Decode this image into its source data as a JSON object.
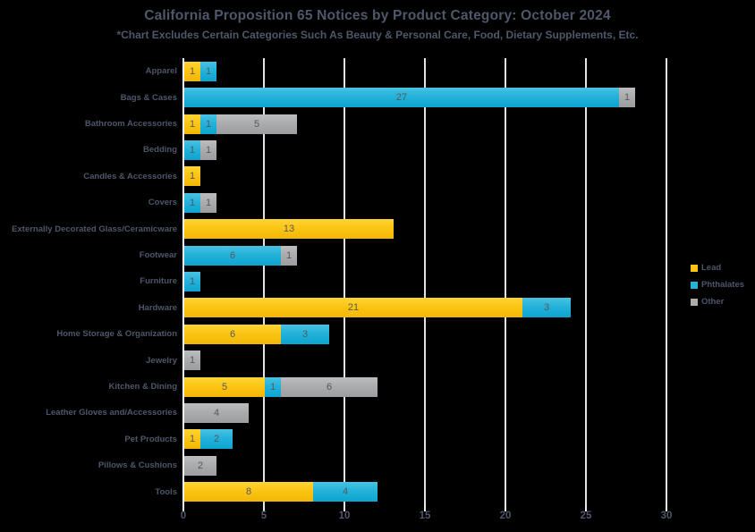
{
  "title": "California Proposition 65 Notices by Product Category: October 2024",
  "subtitle": "*Chart Excludes Certain Categories Such As Beauty & Personal Care, Food, Dietary Supplements, Etc.",
  "colors": {
    "lead": "#FCC513",
    "phthalates": "#24B2DA",
    "other": "#ABACAE",
    "text": "#4D5769",
    "gridline": "#E2E3E6",
    "background": "#000000"
  },
  "legend": [
    {
      "id": "lead",
      "label": "Lead",
      "color": "#FCC513"
    },
    {
      "id": "phthalates",
      "label": "Phthalates",
      "color": "#24B2DA"
    },
    {
      "id": "other",
      "label": "Other",
      "color": "#ABACAE"
    }
  ],
  "x_axis": {
    "ticks": [
      "0",
      "5",
      "10",
      "15",
      "20",
      "25",
      "30"
    ],
    "min": 0,
    "max": 30,
    "grid": true
  },
  "chart_data": {
    "type": "bar",
    "orientation": "horizontal",
    "stacked": true,
    "title": "California Proposition 65 Notices by Product Category: October 2024",
    "subtitle": "*Chart Excludes Certain Categories Such As Beauty & Personal Care, Food, Dietary Supplements, Etc.",
    "xlabel": "",
    "ylabel": "",
    "xlim": [
      0,
      30
    ],
    "legend_position": "right",
    "categories": [
      "Apparel",
      "Bags & Cases",
      "Bathroom Accessories",
      "Bedding",
      "Candles & Accessories",
      "Covers",
      "Externally Decorated Glass/Ceramicware",
      "Footwear",
      "Furniture",
      "Hardware",
      "Home Storage & Organization",
      "Jewelry",
      "Kitchen & Dining",
      "Leather Gloves and/Accessories",
      "Pet Products",
      "Pillows & Cushions",
      "Tools"
    ],
    "series": [
      {
        "name": "Lead",
        "id": "lead",
        "color": "#FCC513",
        "values": [
          1,
          0,
          1,
          0,
          1,
          0,
          13,
          0,
          0,
          21,
          6,
          0,
          5,
          0,
          1,
          0,
          8
        ]
      },
      {
        "name": "Phthalates",
        "id": "phthalates",
        "color": "#24B2DA",
        "values": [
          1,
          27,
          1,
          1,
          0,
          1,
          0,
          6,
          1,
          3,
          3,
          0,
          1,
          0,
          2,
          0,
          4
        ]
      },
      {
        "name": "Other",
        "id": "other",
        "color": "#ABACAE",
        "values": [
          0,
          1,
          5,
          1,
          0,
          1,
          0,
          1,
          0,
          0,
          0,
          1,
          6,
          4,
          0,
          2,
          0
        ]
      }
    ]
  }
}
